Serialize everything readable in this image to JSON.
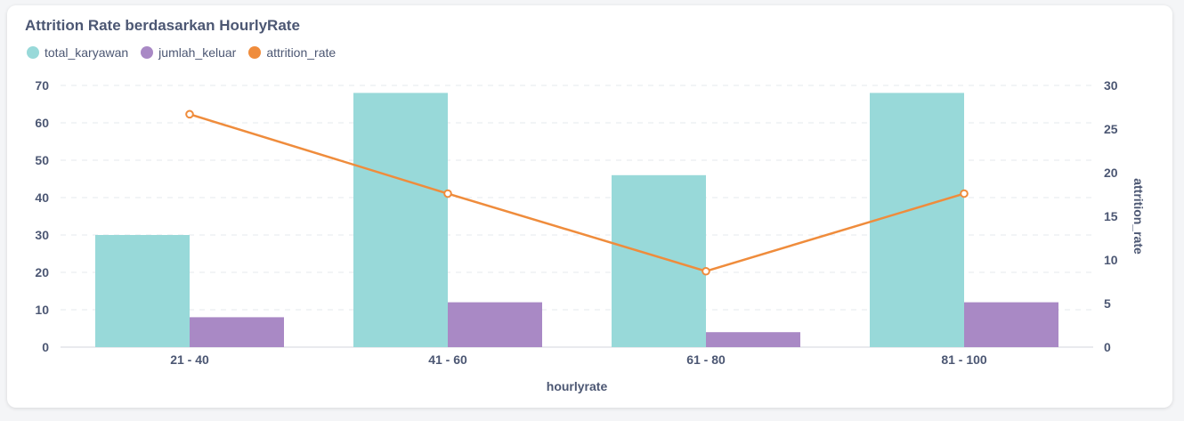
{
  "chart_data": {
    "type": "bar",
    "title": "Attrition Rate berdasarkan HourlyRate",
    "categories": [
      "21 - 40",
      "41 - 60",
      "61 - 80",
      "81 - 100"
    ],
    "series": [
      {
        "name": "total_karyawan",
        "type": "bar",
        "axis": "left",
        "color": "#98d9d9",
        "values": [
          30,
          68,
          46,
          68
        ]
      },
      {
        "name": "jumlah_keluar",
        "type": "bar",
        "axis": "left",
        "color": "#a989c5",
        "values": [
          8,
          12,
          4,
          12
        ]
      },
      {
        "name": "attrition_rate",
        "type": "line",
        "axis": "right",
        "color": "#ef8c3c",
        "values": [
          26.7,
          17.6,
          8.7,
          17.6
        ]
      }
    ],
    "xlabel": "hourlyrate",
    "ylabel": "",
    "y2label": "attrition_rate",
    "ylim": [
      0,
      70
    ],
    "y_ticks": [
      0,
      10,
      20,
      30,
      40,
      50,
      60,
      70
    ],
    "y2lim": [
      0,
      30
    ],
    "y2_ticks": [
      0,
      5,
      10,
      15,
      20,
      25,
      30
    ],
    "grid": true,
    "legend_position": "top-left"
  }
}
